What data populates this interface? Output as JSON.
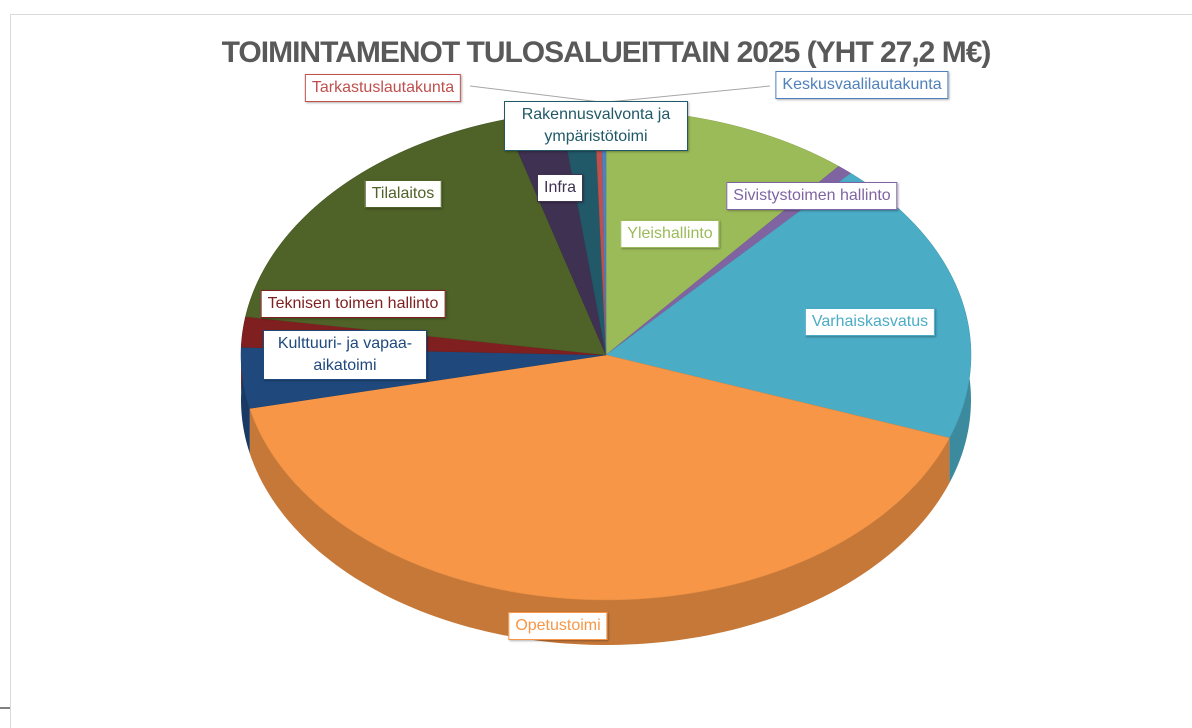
{
  "chart_data": {
    "type": "pie3d",
    "title": "TOIMINTAMENOT TULOSALUEITTAIN 2025 (YHT 27,2 M€)",
    "categories": [
      "Yleishallinto",
      "Sivistystoimen hallinto",
      "Varhaiskasvatus",
      "Opetustoimi",
      "Kulttuuri- ja vapaa-aikatoimi",
      "Teknisen toimen hallinto",
      "Tilalaitos",
      "Infra",
      "Rakennusvalvonta ja ympäristötoimi",
      "Tarkastuslautakunta",
      "Keskusvaalilautakunta"
    ],
    "values": [
      11,
      0.7,
      18.8,
      41,
      4,
      2,
      18,
      2.5,
      1.5,
      0.3,
      0.2
    ],
    "colors": [
      "#9bbb59",
      "#8064a2",
      "#4bacc6",
      "#f79646",
      "#1f497d",
      "#7f1f1f",
      "#4f6228",
      "#3f3151",
      "#215968",
      "#c0504d",
      "#4f81bd"
    ]
  }
}
